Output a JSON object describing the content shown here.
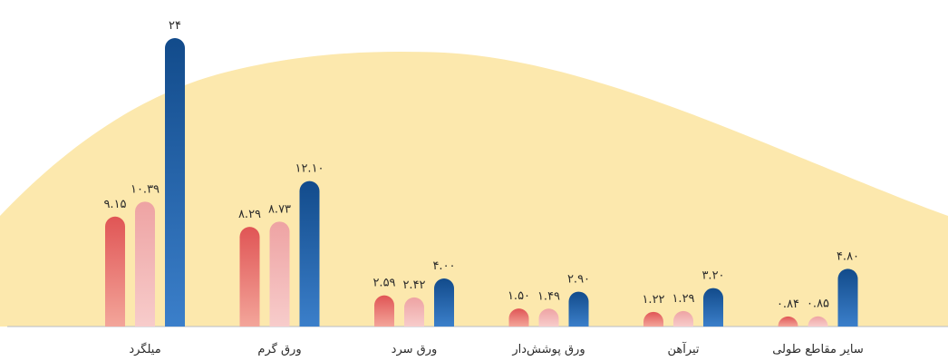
{
  "chart_data": {
    "type": "bar",
    "categories": [
      "میلگرد",
      "ورق گرم",
      "ورق سرد",
      "ورق پوشش‌دار",
      "تیرآهن",
      "سایر مقاطع طولی"
    ],
    "series": [
      {
        "values": [
          9.15,
          8.29,
          2.59,
          1.5,
          1.22,
          0.84
        ],
        "labels": [
          "۹.۱۵",
          "۸.۲۹",
          "۲.۵۹",
          "۱.۵۰",
          "۱.۲۲",
          "۰.۸۴"
        ],
        "color_top": "#e05555",
        "color_bottom": "#f3a59a"
      },
      {
        "values": [
          10.39,
          8.73,
          2.42,
          1.49,
          1.29,
          0.85
        ],
        "labels": [
          "۱۰.۳۹",
          "۸.۷۳",
          "۲.۴۲",
          "۱.۴۹",
          "۱.۲۹",
          "۰.۸۵"
        ],
        "color_top": "#eea3a3",
        "color_bottom": "#f7cccb"
      },
      {
        "values": [
          24,
          12.1,
          4.0,
          2.9,
          3.2,
          4.8
        ],
        "labels": [
          "۲۴",
          "۱۲.۱۰",
          "۴.۰۰",
          "۲.۹۰",
          "۳.۲۰",
          "۴.۸۰"
        ],
        "color_top": "#124b8b",
        "color_bottom": "#3b7fca"
      }
    ],
    "ylim": [
      0,
      24
    ],
    "grid": false,
    "background_color": "#fce8ad",
    "axis_color": "#b9bcc7"
  }
}
